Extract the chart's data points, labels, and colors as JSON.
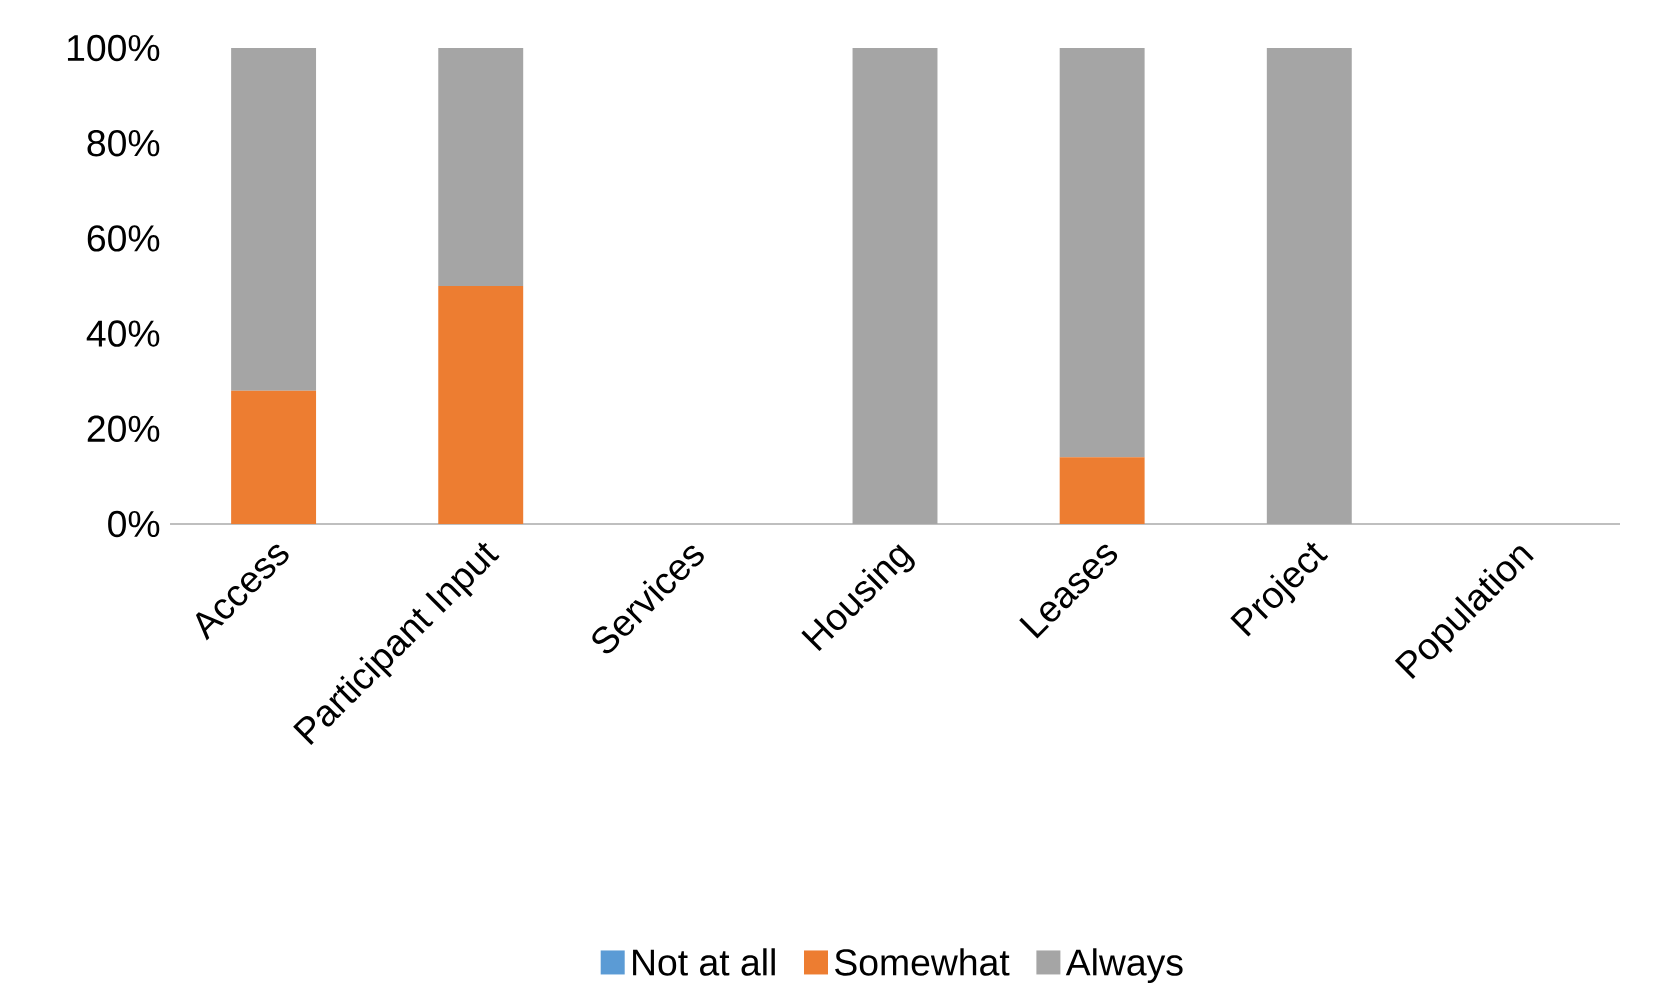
{
  "chart_data": {
    "type": "bar",
    "stacked": true,
    "categories": [
      "Access",
      "Participant Input",
      "Services",
      "Housing",
      "Leases",
      "Project",
      "Population"
    ],
    "series": [
      {
        "name": "Not at all",
        "color": "#5b9bd5",
        "values": [
          0,
          0,
          null,
          0,
          0,
          0,
          null
        ]
      },
      {
        "name": "Somewhat",
        "color": "#ed7d31",
        "values": [
          28,
          50,
          null,
          0,
          14,
          0,
          null
        ]
      },
      {
        "name": "Always",
        "color": "#a5a5a5",
        "values": [
          72,
          50,
          null,
          100,
          86,
          100,
          null
        ]
      }
    ],
    "ylim": [
      0,
      100
    ],
    "yticks": [
      {
        "value": 0,
        "label": "0%"
      },
      {
        "value": 20,
        "label": "20%"
      },
      {
        "value": 40,
        "label": "40%"
      },
      {
        "value": 60,
        "label": "60%"
      },
      {
        "value": 80,
        "label": "80%"
      },
      {
        "value": 100,
        "label": "100%"
      }
    ],
    "grid": false,
    "legend": "bottom"
  }
}
